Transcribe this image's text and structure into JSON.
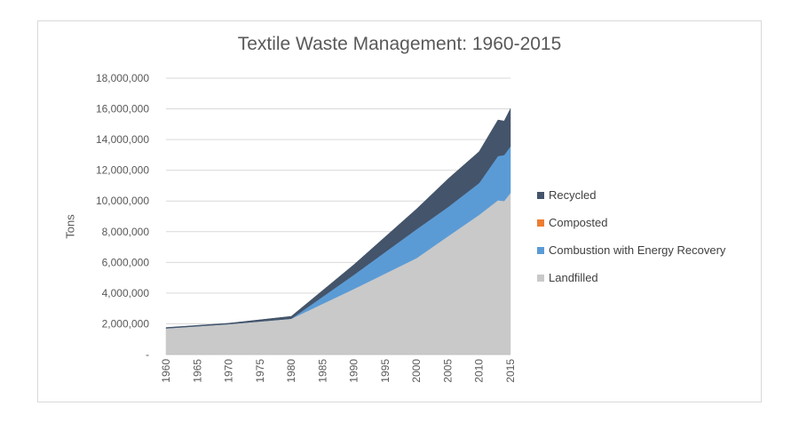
{
  "chart_data": {
    "type": "area",
    "stacked": true,
    "title": "Textile  Waste Management: 1960-2015",
    "ylabel": "Tons",
    "xlabel": "",
    "ylim": [
      0,
      18000000
    ],
    "y_ticks": [
      0,
      2000000,
      4000000,
      6000000,
      8000000,
      10000000,
      12000000,
      14000000,
      16000000,
      18000000
    ],
    "y_tick_labels": [
      "-",
      "2,000,000",
      "4,000,000",
      "6,000,000",
      "8,000,000",
      "10,000,000",
      "12,000,000",
      "14,000,000",
      "16,000,000",
      "18,000,000"
    ],
    "x_tick_labels": [
      "1960",
      "1965",
      "1970",
      "1975",
      "1980",
      "1985",
      "1990",
      "1995",
      "2000",
      "2005",
      "2010",
      "2015"
    ],
    "grid": "horizontal",
    "legend_position": "right",
    "x": [
      1960,
      1970,
      1980,
      1990,
      2000,
      2005,
      2010,
      2013,
      2014,
      2015
    ],
    "series": [
      {
        "name": "Landfilled",
        "color": "#c9c9c9",
        "values": [
          1710000,
          1980000,
          2330000,
          4270000,
          6280000,
          7700000,
          9100000,
          10050000,
          10000000,
          10530000
        ]
      },
      {
        "name": "Combustion with Energy Recovery",
        "color": "#5b9bd5",
        "values": [
          0,
          0,
          0,
          920000,
          1880000,
          1900000,
          2070000,
          2880000,
          3000000,
          3030000
        ]
      },
      {
        "name": "Composted",
        "color": "#ed7d31",
        "values": [
          0,
          0,
          0,
          0,
          0,
          0,
          0,
          0,
          0,
          0
        ]
      },
      {
        "name": "Recycled",
        "color": "#44546a",
        "values": [
          50000,
          60000,
          160000,
          660000,
          1320000,
          1830000,
          2050000,
          2350000,
          2210000,
          2460000
        ]
      }
    ]
  },
  "legend": [
    "Recycled",
    "Composted",
    "Combustion with Energy Recovery",
    "Landfilled"
  ],
  "legend_colors": [
    "#44546a",
    "#ed7d31",
    "#5b9bd5",
    "#c9c9c9"
  ]
}
